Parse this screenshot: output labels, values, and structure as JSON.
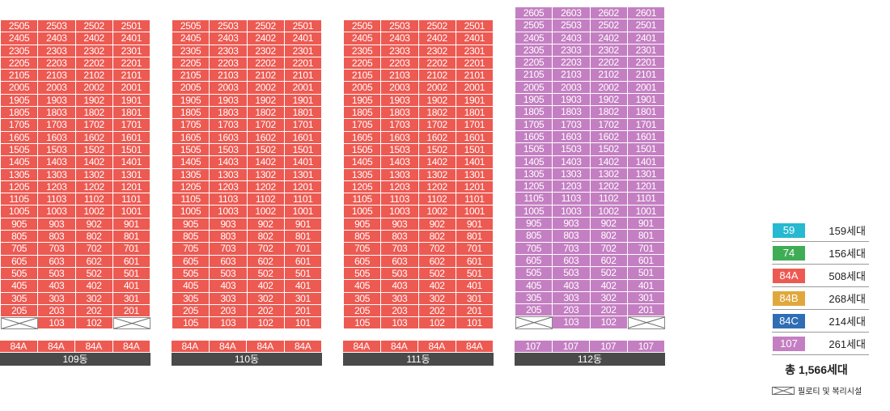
{
  "colors": {
    "84A": "#ed5a52",
    "107": "#c47fc2",
    "59": "#26b9d1",
    "74": "#3fad55",
    "84B": "#e0a83c",
    "84C": "#2f6eb5"
  },
  "buildings": [
    {
      "name": "109동",
      "type_labels": [
        "84A",
        "84A",
        "84A",
        "84A"
      ],
      "color_key": "84A",
      "units": [
        [
          "2505",
          "2503",
          "2502",
          "2501"
        ],
        [
          "2405",
          "2403",
          "2402",
          "2401"
        ],
        [
          "2305",
          "2303",
          "2302",
          "2301"
        ],
        [
          "2205",
          "2203",
          "2202",
          "2201"
        ],
        [
          "2105",
          "2103",
          "2102",
          "2101"
        ],
        [
          "2005",
          "2003",
          "2002",
          "2001"
        ],
        [
          "1905",
          "1903",
          "1902",
          "1901"
        ],
        [
          "1805",
          "1803",
          "1802",
          "1801"
        ],
        [
          "1705",
          "1703",
          "1702",
          "1701"
        ],
        [
          "1605",
          "1603",
          "1602",
          "1601"
        ],
        [
          "1505",
          "1503",
          "1502",
          "1501"
        ],
        [
          "1405",
          "1403",
          "1402",
          "1401"
        ],
        [
          "1305",
          "1303",
          "1302",
          "1301"
        ],
        [
          "1205",
          "1203",
          "1202",
          "1201"
        ],
        [
          "1105",
          "1103",
          "1102",
          "1101"
        ],
        [
          "1005",
          "1003",
          "1002",
          "1001"
        ],
        [
          "905",
          "903",
          "902",
          "901"
        ],
        [
          "805",
          "803",
          "802",
          "801"
        ],
        [
          "705",
          "703",
          "702",
          "701"
        ],
        [
          "605",
          "603",
          "602",
          "601"
        ],
        [
          "505",
          "503",
          "502",
          "501"
        ],
        [
          "405",
          "403",
          "402",
          "401"
        ],
        [
          "305",
          "303",
          "302",
          "301"
        ],
        [
          "205",
          "203",
          "202",
          "201"
        ],
        [
          "",
          "103",
          "102",
          ""
        ]
      ]
    },
    {
      "name": "110동",
      "type_labels": [
        "84A",
        "84A",
        "84A",
        "84A"
      ],
      "color_key": "84A",
      "units": [
        [
          "2505",
          "2503",
          "2502",
          "2501"
        ],
        [
          "2405",
          "2403",
          "2402",
          "2401"
        ],
        [
          "2305",
          "2303",
          "2302",
          "2301"
        ],
        [
          "2205",
          "2203",
          "2202",
          "2201"
        ],
        [
          "2105",
          "2103",
          "2102",
          "2101"
        ],
        [
          "2005",
          "2003",
          "2002",
          "2001"
        ],
        [
          "1905",
          "1903",
          "1902",
          "1901"
        ],
        [
          "1805",
          "1803",
          "1802",
          "1801"
        ],
        [
          "1705",
          "1703",
          "1702",
          "1701"
        ],
        [
          "1605",
          "1603",
          "1602",
          "1601"
        ],
        [
          "1505",
          "1503",
          "1502",
          "1501"
        ],
        [
          "1405",
          "1403",
          "1402",
          "1401"
        ],
        [
          "1305",
          "1303",
          "1302",
          "1301"
        ],
        [
          "1205",
          "1203",
          "1202",
          "1201"
        ],
        [
          "1105",
          "1103",
          "1102",
          "1101"
        ],
        [
          "1005",
          "1003",
          "1002",
          "1001"
        ],
        [
          "905",
          "903",
          "902",
          "901"
        ],
        [
          "805",
          "803",
          "802",
          "801"
        ],
        [
          "705",
          "703",
          "702",
          "701"
        ],
        [
          "605",
          "603",
          "602",
          "601"
        ],
        [
          "505",
          "503",
          "502",
          "501"
        ],
        [
          "405",
          "403",
          "402",
          "401"
        ],
        [
          "305",
          "303",
          "302",
          "301"
        ],
        [
          "205",
          "203",
          "202",
          "201"
        ],
        [
          "105",
          "103",
          "102",
          "101"
        ]
      ]
    },
    {
      "name": "111동",
      "type_labels": [
        "84A",
        "84A",
        "84A",
        "84A"
      ],
      "color_key": "84A",
      "units": [
        [
          "2505",
          "2503",
          "2502",
          "2501"
        ],
        [
          "2405",
          "2403",
          "2402",
          "2401"
        ],
        [
          "2305",
          "2303",
          "2302",
          "2301"
        ],
        [
          "2205",
          "2203",
          "2202",
          "2201"
        ],
        [
          "2105",
          "2103",
          "2102",
          "2101"
        ],
        [
          "2005",
          "2003",
          "2002",
          "2001"
        ],
        [
          "1905",
          "1903",
          "1902",
          "1901"
        ],
        [
          "1805",
          "1803",
          "1802",
          "1801"
        ],
        [
          "1705",
          "1703",
          "1702",
          "1701"
        ],
        [
          "1605",
          "1603",
          "1602",
          "1601"
        ],
        [
          "1505",
          "1503",
          "1502",
          "1501"
        ],
        [
          "1405",
          "1403",
          "1402",
          "1401"
        ],
        [
          "1305",
          "1303",
          "1302",
          "1301"
        ],
        [
          "1205",
          "1203",
          "1202",
          "1201"
        ],
        [
          "1105",
          "1103",
          "1102",
          "1101"
        ],
        [
          "1005",
          "1003",
          "1002",
          "1001"
        ],
        [
          "905",
          "903",
          "902",
          "901"
        ],
        [
          "805",
          "803",
          "802",
          "801"
        ],
        [
          "705",
          "703",
          "702",
          "701"
        ],
        [
          "605",
          "603",
          "602",
          "601"
        ],
        [
          "505",
          "503",
          "502",
          "501"
        ],
        [
          "405",
          "403",
          "402",
          "401"
        ],
        [
          "305",
          "303",
          "302",
          "301"
        ],
        [
          "205",
          "203",
          "202",
          "201"
        ],
        [
          "105",
          "103",
          "102",
          "101"
        ]
      ]
    },
    {
      "name": "112동",
      "type_labels": [
        "107",
        "107",
        "107",
        "107"
      ],
      "color_key": "107",
      "units": [
        [
          "2605",
          "2603",
          "2602",
          "2601"
        ],
        [
          "2505",
          "2503",
          "2502",
          "2501"
        ],
        [
          "2405",
          "2403",
          "2402",
          "2401"
        ],
        [
          "2305",
          "2303",
          "2302",
          "2301"
        ],
        [
          "2205",
          "2203",
          "2202",
          "2201"
        ],
        [
          "2105",
          "2103",
          "2102",
          "2101"
        ],
        [
          "2005",
          "2003",
          "2002",
          "2001"
        ],
        [
          "1905",
          "1903",
          "1902",
          "1901"
        ],
        [
          "1805",
          "1803",
          "1802",
          "1801"
        ],
        [
          "1705",
          "1703",
          "1702",
          "1701"
        ],
        [
          "1605",
          "1603",
          "1602",
          "1601"
        ],
        [
          "1505",
          "1503",
          "1502",
          "1501"
        ],
        [
          "1405",
          "1403",
          "1402",
          "1401"
        ],
        [
          "1305",
          "1303",
          "1302",
          "1301"
        ],
        [
          "1205",
          "1203",
          "1202",
          "1201"
        ],
        [
          "1105",
          "1103",
          "1102",
          "1101"
        ],
        [
          "1005",
          "1003",
          "1002",
          "1001"
        ],
        [
          "905",
          "903",
          "902",
          "901"
        ],
        [
          "805",
          "803",
          "802",
          "801"
        ],
        [
          "705",
          "703",
          "702",
          "701"
        ],
        [
          "605",
          "603",
          "602",
          "601"
        ],
        [
          "505",
          "503",
          "502",
          "501"
        ],
        [
          "405",
          "403",
          "402",
          "401"
        ],
        [
          "305",
          "303",
          "302",
          "301"
        ],
        [
          "205",
          "203",
          "202",
          "201"
        ],
        [
          "",
          "103",
          "102",
          ""
        ]
      ]
    }
  ],
  "legend": [
    {
      "type": "59",
      "count": "159세대"
    },
    {
      "type": "74",
      "count": "156세대"
    },
    {
      "type": "84A",
      "count": "508세대"
    },
    {
      "type": "84B",
      "count": "268세대"
    },
    {
      "type": "84C",
      "count": "214세대"
    },
    {
      "type": "107",
      "count": "261세대"
    }
  ],
  "total": "총 1,566세대",
  "piloti_label": "필로티 및 복리시설"
}
